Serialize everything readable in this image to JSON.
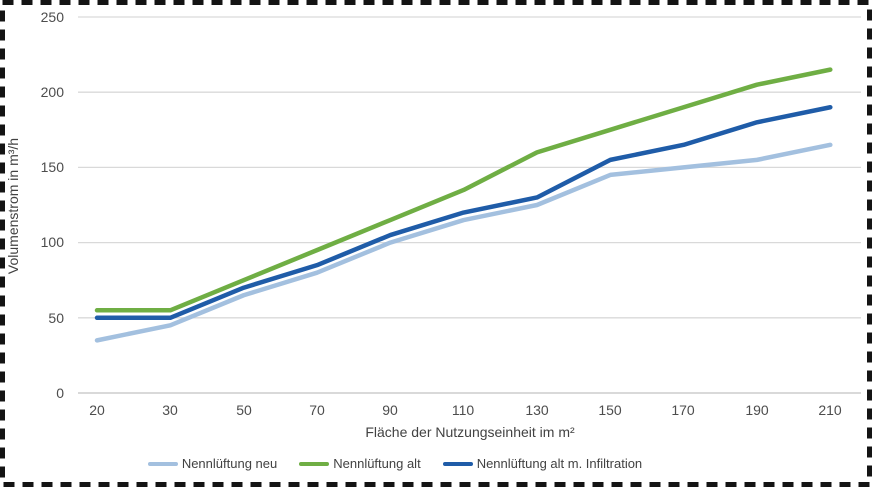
{
  "chart_data": {
    "type": "line",
    "xlabel": "Fläche der Nutzungseinheit im m²",
    "ylabel": "Volumenstrom  in m³/h",
    "x_categories": [
      20,
      30,
      50,
      70,
      90,
      110,
      130,
      150,
      170,
      190,
      210
    ],
    "y_ticks": [
      0,
      50,
      100,
      150,
      200,
      250
    ],
    "ylim": [
      0,
      250
    ],
    "grid": "horizontal-only",
    "legend_position": "bottom-center",
    "series": [
      {
        "name": "Nennlüftung neu",
        "color": "#a3c0df",
        "values": [
          35,
          45,
          65,
          80,
          100,
          115,
          125,
          145,
          150,
          155,
          165
        ]
      },
      {
        "name": "Nennlüftung alt",
        "color": "#6fae44",
        "values": [
          55,
          55,
          75,
          95,
          115,
          135,
          160,
          175,
          190,
          205,
          215
        ]
      },
      {
        "name": "Nennlüftung alt m. Infiltration",
        "color": "#1f5ca8",
        "values": [
          50,
          50,
          70,
          85,
          105,
          120,
          130,
          155,
          165,
          180,
          190
        ]
      }
    ],
    "colors": {
      "gridline": "#d9d9d9",
      "baseline": "#c2c2c2",
      "frame_border": "#141414",
      "tick_text": "#4d4d4d"
    }
  }
}
